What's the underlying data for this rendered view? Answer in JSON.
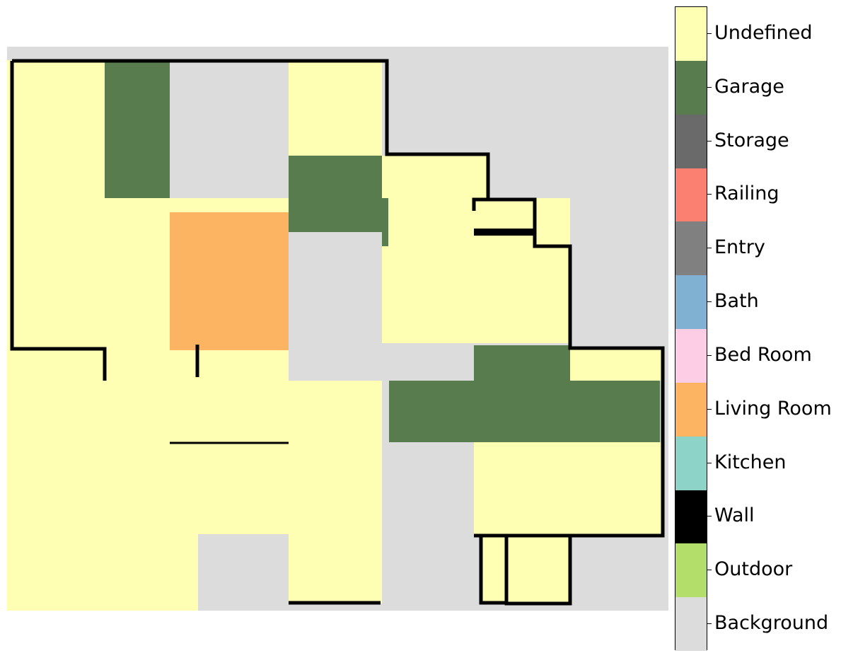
{
  "legend": {
    "items": [
      {
        "label": "Undefined",
        "color": "#ffffb3"
      },
      {
        "label": "Garage",
        "color": "#587c4d"
      },
      {
        "label": "Storage",
        "color": "#6a6a6a"
      },
      {
        "label": "Railing",
        "color": "#fb8072"
      },
      {
        "label": "Entry",
        "color": "#808080"
      },
      {
        "label": "Bath",
        "color": "#80b1d3"
      },
      {
        "label": "Bed Room",
        "color": "#fccde5"
      },
      {
        "label": "Living Room",
        "color": "#fdb462"
      },
      {
        "label": "Kitchen",
        "color": "#8dd3c7"
      },
      {
        "label": "Wall",
        "color": "#000000"
      },
      {
        "label": "Outdoor",
        "color": "#b3de69"
      },
      {
        "label": "Background",
        "color": "#dcdcdc"
      }
    ]
  }
}
